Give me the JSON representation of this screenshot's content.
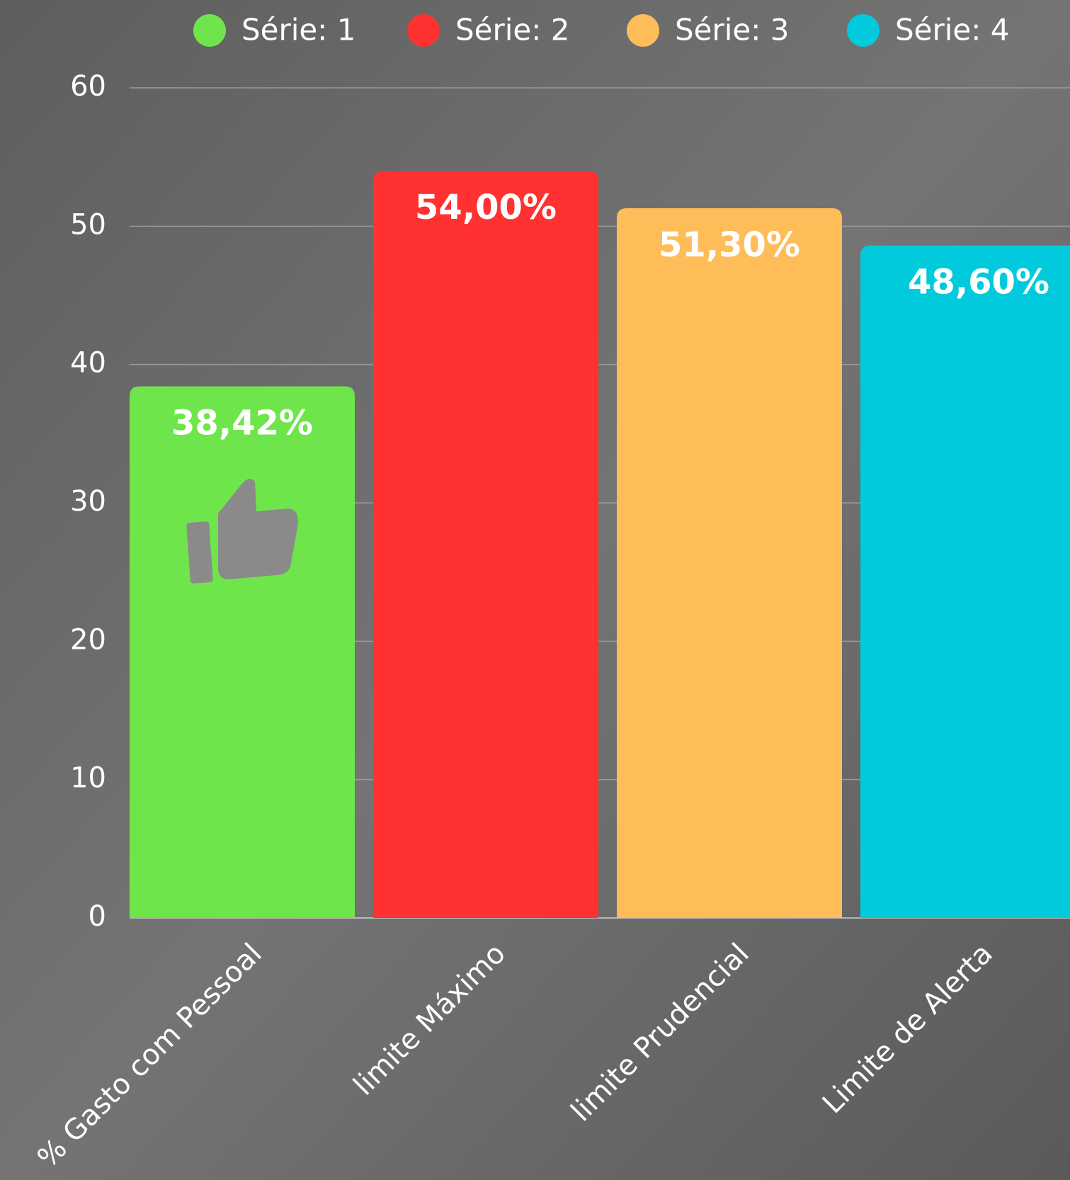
{
  "chart_data": {
    "type": "bar",
    "categories": [
      "% Gasto com Pessoal",
      "limite Máximo",
      "limite Prudencial",
      "Limite de Alerta"
    ],
    "series": [
      {
        "name": "Série: 1",
        "color": "#6ee54a",
        "values": [
          38.42,
          null,
          null,
          null
        ],
        "value_labels": [
          "38,42%",
          null,
          null,
          null
        ]
      },
      {
        "name": "Série: 2",
        "color": "#ff3131",
        "values": [
          null,
          54,
          null,
          null
        ],
        "value_labels": [
          null,
          "54,00%",
          null,
          null
        ]
      },
      {
        "name": "Série: 3",
        "color": "#ffbd59",
        "values": [
          null,
          null,
          51.3,
          null
        ],
        "value_labels": [
          null,
          null,
          "51,30%",
          null
        ]
      },
      {
        "name": "Série: 4",
        "color": "#00cadc",
        "values": [
          null,
          null,
          null,
          48.6
        ],
        "value_labels": [
          null,
          null,
          null,
          "48,60%"
        ]
      }
    ],
    "ylim": [
      0,
      60
    ],
    "yticks": [
      0,
      10,
      20,
      30,
      40,
      50,
      60
    ],
    "grid": true,
    "legend": "top"
  }
}
